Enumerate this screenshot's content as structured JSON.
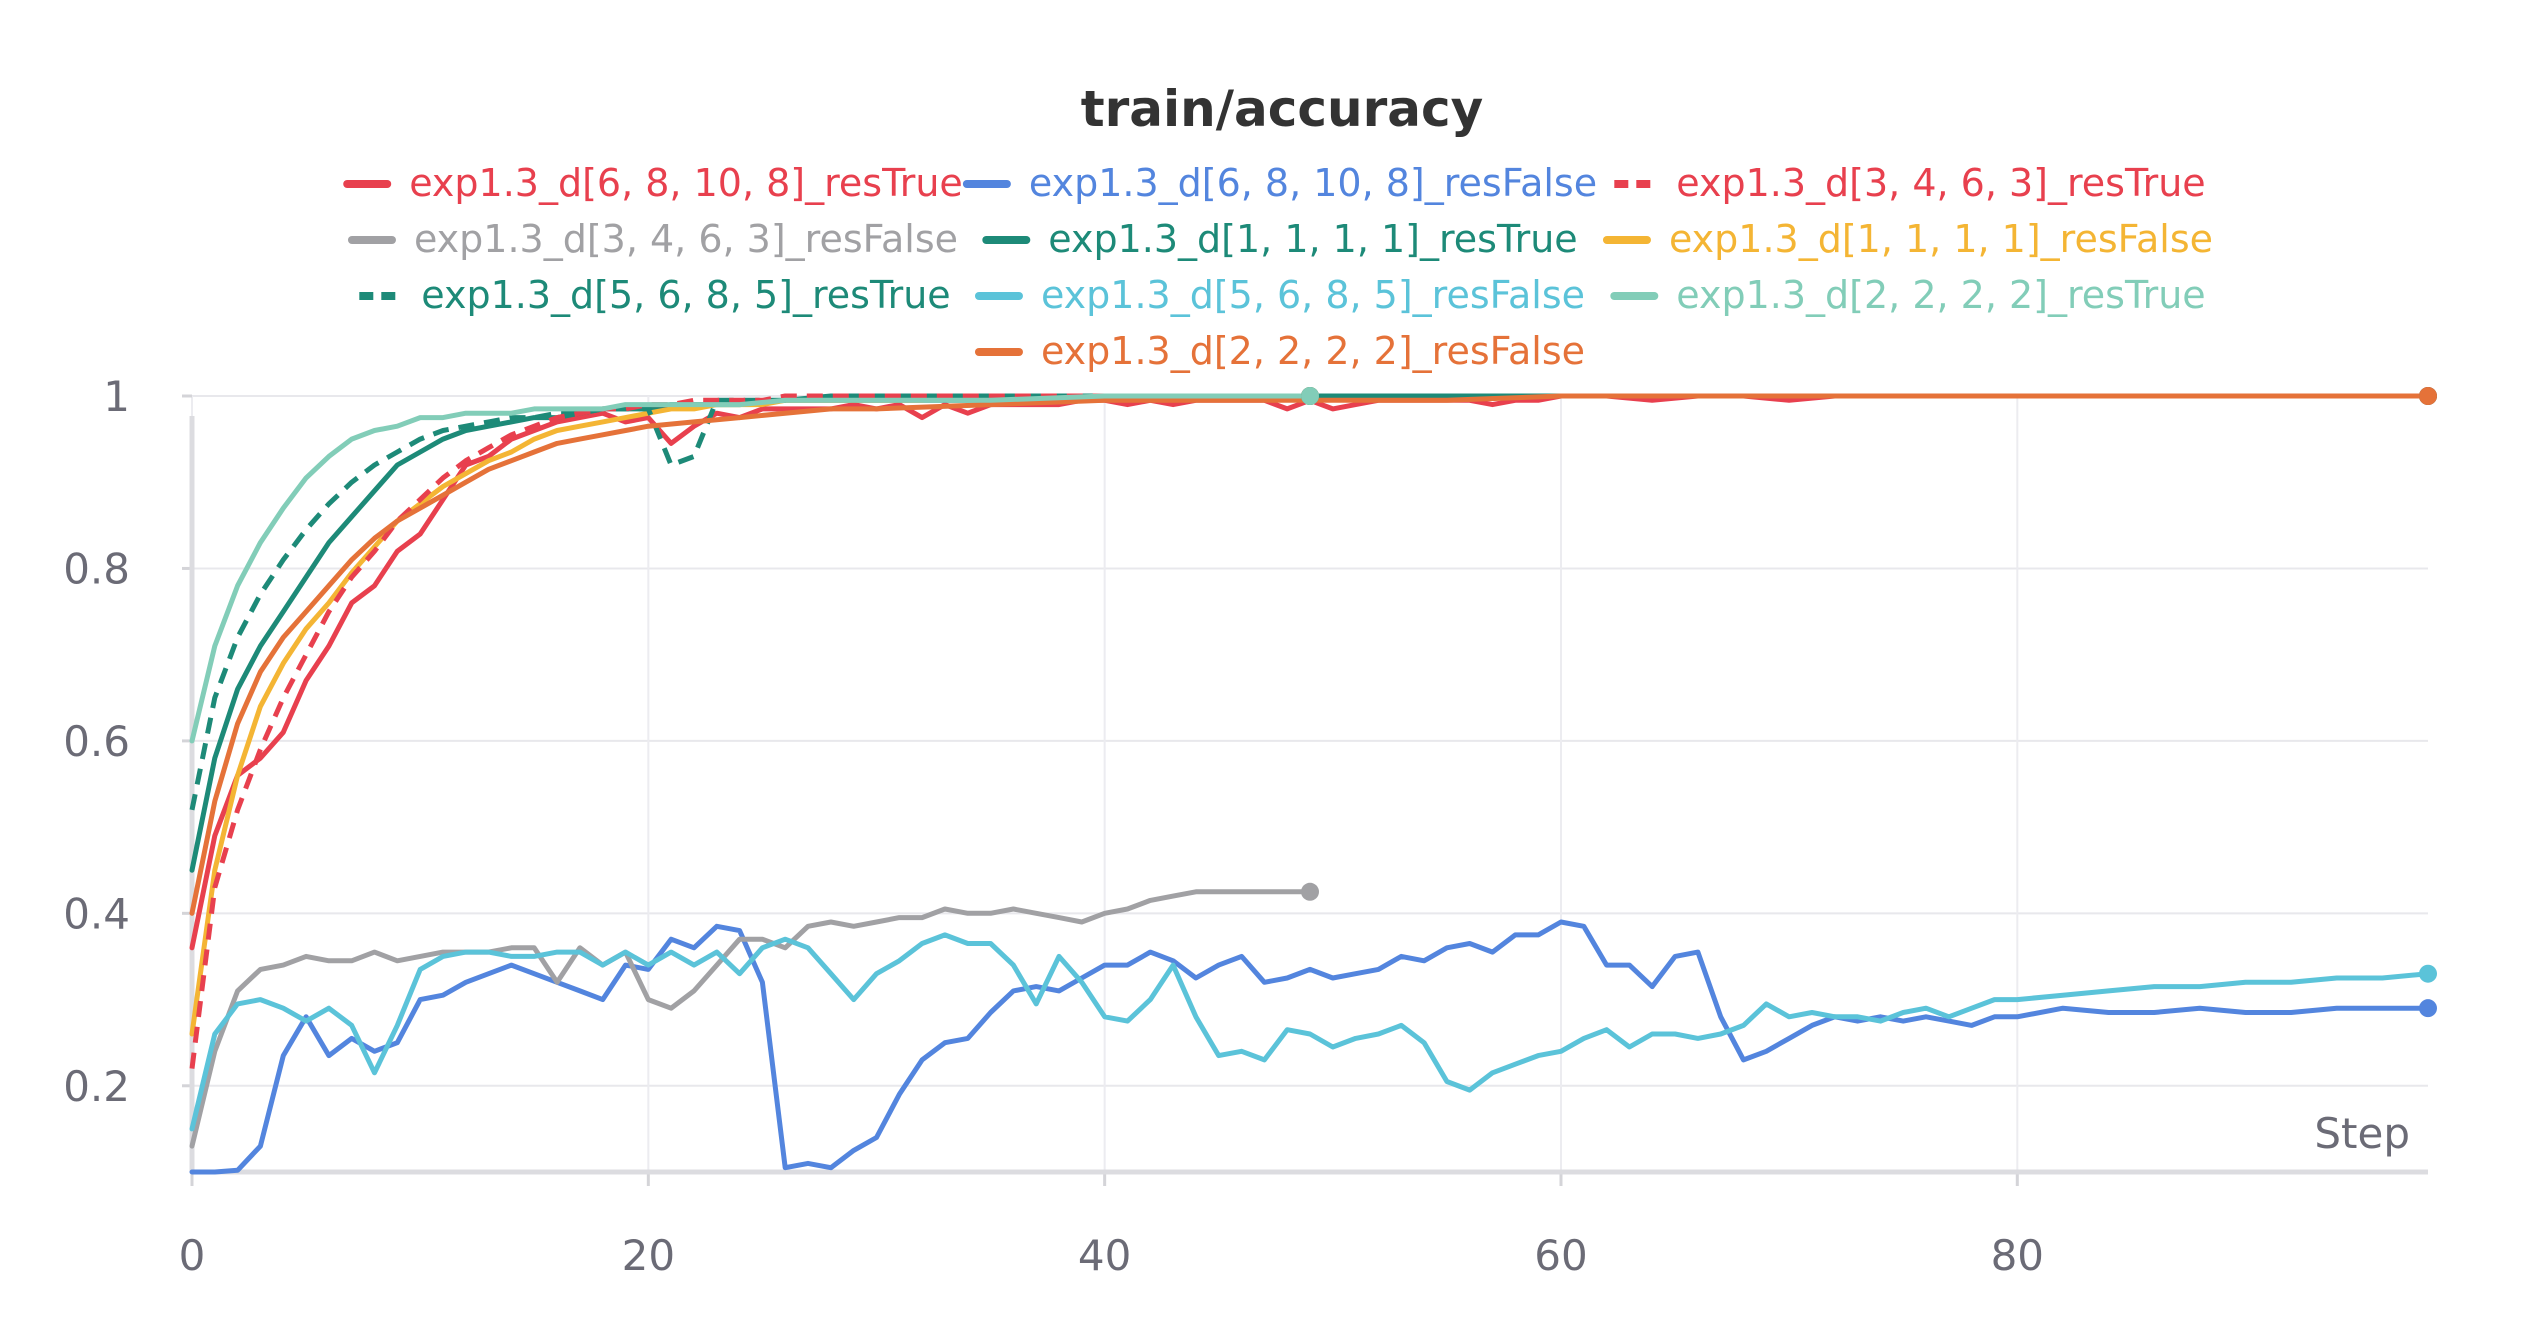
{
  "chart_data": {
    "type": "line",
    "title": "train/accuracy",
    "xlabel": "Step",
    "ylabel": "",
    "xlim": [
      0,
      98
    ],
    "ylim": [
      0.1,
      1.0
    ],
    "x_ticks": [
      "0",
      "20",
      "40",
      "60",
      "80"
    ],
    "x_tick_values": [
      0,
      20,
      40,
      60,
      80
    ],
    "y_ticks": [
      "0.2",
      "0.4",
      "0.6",
      "0.8",
      "1"
    ],
    "y_tick_values": [
      0.2,
      0.4,
      0.6,
      0.8,
      1.0
    ],
    "grid": true,
    "legend_position": "top-center",
    "series": [
      {
        "name": "exp1.3_d[6, 8, 10, 8]_resTrue",
        "color": "#e8404e",
        "dash": false,
        "x": [
          0,
          1,
          2,
          3,
          4,
          5,
          6,
          7,
          8,
          9,
          10,
          11,
          12,
          13,
          14,
          15,
          16,
          17,
          18,
          19,
          20,
          21,
          22,
          23,
          24,
          25,
          26,
          27,
          28,
          29,
          30,
          31,
          32,
          33,
          34,
          35,
          36,
          37,
          38,
          39,
          40,
          41,
          42,
          43,
          44,
          45,
          46,
          47,
          48,
          49,
          50,
          51,
          52,
          53,
          54,
          55,
          56,
          57,
          58,
          59,
          60,
          62,
          64,
          66,
          68,
          70,
          72,
          74,
          76,
          78,
          80,
          82,
          84,
          86,
          88,
          90,
          92,
          94,
          96,
          98
        ],
        "y": [
          0.36,
          0.49,
          0.56,
          0.58,
          0.61,
          0.67,
          0.71,
          0.76,
          0.78,
          0.82,
          0.84,
          0.88,
          0.92,
          0.93,
          0.95,
          0.96,
          0.97,
          0.975,
          0.98,
          0.97,
          0.975,
          0.945,
          0.965,
          0.98,
          0.975,
          0.985,
          0.985,
          0.985,
          0.985,
          0.99,
          0.985,
          0.99,
          0.975,
          0.99,
          0.98,
          0.99,
          0.99,
          0.99,
          0.99,
          0.995,
          0.995,
          0.99,
          0.995,
          0.99,
          0.995,
          0.995,
          0.995,
          0.995,
          0.985,
          0.995,
          0.985,
          0.99,
          0.995,
          0.995,
          0.995,
          0.995,
          0.995,
          0.99,
          0.995,
          0.995,
          1.0,
          1.0,
          0.995,
          1.0,
          1.0,
          0.995,
          1.0,
          1.0,
          1.0,
          1.0,
          1.0,
          1.0,
          1.0,
          1.0,
          1.0,
          1.0,
          1.0,
          1.0,
          1.0,
          1.0
        ]
      },
      {
        "name": "exp1.3_d[6, 8, 10, 8]_resFalse",
        "color": "#5385de",
        "dash": false,
        "x": [
          0,
          1,
          2,
          3,
          4,
          5,
          6,
          7,
          8,
          9,
          10,
          11,
          12,
          13,
          14,
          15,
          16,
          17,
          18,
          19,
          20,
          21,
          22,
          23,
          24,
          25,
          26,
          27,
          28,
          29,
          30,
          31,
          32,
          33,
          34,
          35,
          36,
          37,
          38,
          39,
          40,
          41,
          42,
          43,
          44,
          45,
          46,
          47,
          48,
          49,
          50,
          51,
          52,
          53,
          54,
          55,
          56,
          57,
          58,
          59,
          60,
          61,
          62,
          63,
          64,
          65,
          66,
          67,
          68,
          69,
          70,
          71,
          72,
          73,
          74,
          75,
          76,
          77,
          78,
          79,
          80,
          82,
          84,
          86,
          88,
          90,
          92,
          94,
          96,
          98
        ],
        "y": [
          0.1,
          0.1,
          0.102,
          0.13,
          0.235,
          0.28,
          0.235,
          0.255,
          0.24,
          0.25,
          0.3,
          0.305,
          0.32,
          0.33,
          0.34,
          0.33,
          0.32,
          0.31,
          0.3,
          0.34,
          0.335,
          0.37,
          0.36,
          0.385,
          0.38,
          0.32,
          0.105,
          0.11,
          0.105,
          0.125,
          0.14,
          0.19,
          0.23,
          0.25,
          0.255,
          0.285,
          0.31,
          0.315,
          0.31,
          0.325,
          0.34,
          0.34,
          0.355,
          0.345,
          0.325,
          0.34,
          0.35,
          0.32,
          0.325,
          0.335,
          0.325,
          0.33,
          0.335,
          0.35,
          0.345,
          0.36,
          0.365,
          0.355,
          0.375,
          0.375,
          0.39,
          0.385,
          0.34,
          0.34,
          0.315,
          0.35,
          0.355,
          0.28,
          0.23,
          0.24,
          0.255,
          0.27,
          0.28,
          0.275,
          0.28,
          0.275,
          0.28,
          0.275,
          0.27,
          0.28,
          0.28,
          0.29,
          0.285,
          0.285,
          0.29,
          0.285,
          0.285,
          0.29,
          0.29,
          0.29
        ]
      },
      {
        "name": "exp1.3_d[3, 4, 6, 3]_resTrue",
        "color": "#e8404e",
        "dash": true,
        "x": [
          0,
          1,
          2,
          3,
          4,
          5,
          6,
          7,
          8,
          9,
          10,
          11,
          12,
          13,
          14,
          15,
          16,
          17,
          18,
          19,
          20,
          21,
          22,
          23,
          24,
          25,
          26,
          28,
          30,
          32,
          34,
          36,
          38,
          40,
          42,
          44,
          46,
          48,
          49
        ],
        "y": [
          0.22,
          0.43,
          0.52,
          0.59,
          0.65,
          0.7,
          0.75,
          0.79,
          0.82,
          0.855,
          0.88,
          0.905,
          0.925,
          0.94,
          0.955,
          0.965,
          0.975,
          0.98,
          0.985,
          0.985,
          0.99,
          0.99,
          0.995,
          0.995,
          0.995,
          0.995,
          1.0,
          1.0,
          1.0,
          1.0,
          1.0,
          1.0,
          1.0,
          1.0,
          1.0,
          1.0,
          1.0,
          1.0,
          1.0
        ]
      },
      {
        "name": "exp1.3_d[3, 4, 6, 3]_resFalse",
        "color": "#a1a1a4",
        "dash": false,
        "x": [
          0,
          1,
          2,
          3,
          4,
          5,
          6,
          7,
          8,
          9,
          10,
          11,
          12,
          13,
          14,
          15,
          16,
          17,
          18,
          19,
          20,
          21,
          22,
          23,
          24,
          25,
          26,
          27,
          28,
          29,
          30,
          31,
          32,
          33,
          34,
          35,
          36,
          37,
          38,
          39,
          40,
          41,
          42,
          43,
          44,
          45,
          46,
          47,
          48,
          49
        ],
        "y": [
          0.13,
          0.24,
          0.31,
          0.335,
          0.34,
          0.35,
          0.345,
          0.345,
          0.355,
          0.345,
          0.35,
          0.355,
          0.355,
          0.355,
          0.36,
          0.36,
          0.32,
          0.36,
          0.34,
          0.355,
          0.3,
          0.29,
          0.31,
          0.34,
          0.37,
          0.37,
          0.36,
          0.385,
          0.39,
          0.385,
          0.39,
          0.395,
          0.395,
          0.405,
          0.4,
          0.4,
          0.405,
          0.4,
          0.395,
          0.39,
          0.4,
          0.405,
          0.415,
          0.42,
          0.425,
          0.425,
          0.425,
          0.425,
          0.425,
          0.425
        ]
      },
      {
        "name": "exp1.3_d[1, 1, 1, 1]_resTrue",
        "color": "#1d8a78",
        "dash": false,
        "x": [
          0,
          1,
          2,
          3,
          4,
          5,
          6,
          7,
          8,
          9,
          10,
          11,
          12,
          13,
          14,
          15,
          16,
          17,
          18,
          19,
          20,
          21,
          22,
          24,
          26,
          28,
          30,
          35,
          40,
          45,
          50,
          55,
          60,
          65,
          70,
          75,
          80,
          85,
          90,
          95,
          98
        ],
        "y": [
          0.45,
          0.58,
          0.66,
          0.71,
          0.75,
          0.79,
          0.83,
          0.86,
          0.89,
          0.92,
          0.935,
          0.95,
          0.96,
          0.965,
          0.97,
          0.975,
          0.975,
          0.98,
          0.985,
          0.985,
          0.985,
          0.99,
          0.99,
          0.99,
          0.995,
          0.995,
          0.995,
          0.995,
          1.0,
          1.0,
          1.0,
          1.0,
          1.0,
          1.0,
          1.0,
          1.0,
          1.0,
          1.0,
          1.0,
          1.0,
          1.0
        ]
      },
      {
        "name": "exp1.3_d[1, 1, 1, 1]_resFalse",
        "color": "#f4b534",
        "dash": false,
        "x": [
          0,
          1,
          2,
          3,
          4,
          5,
          6,
          7,
          8,
          9,
          10,
          11,
          12,
          13,
          14,
          15,
          16,
          17,
          18,
          19,
          20,
          21,
          22,
          23,
          24,
          25,
          26,
          28,
          30,
          32,
          34,
          36,
          38,
          40,
          42,
          44,
          46,
          48,
          49
        ],
        "y": [
          0.26,
          0.45,
          0.56,
          0.64,
          0.69,
          0.73,
          0.76,
          0.795,
          0.825,
          0.855,
          0.875,
          0.895,
          0.91,
          0.925,
          0.935,
          0.95,
          0.96,
          0.965,
          0.97,
          0.975,
          0.98,
          0.985,
          0.985,
          0.99,
          0.99,
          0.99,
          0.995,
          0.995,
          0.995,
          0.995,
          1.0,
          1.0,
          1.0,
          1.0,
          1.0,
          1.0,
          1.0,
          1.0,
          1.0
        ]
      },
      {
        "name": "exp1.3_d[5, 6, 8, 5]_resTrue",
        "color": "#1d8a78",
        "dash": true,
        "x": [
          0,
          1,
          2,
          3,
          4,
          5,
          6,
          7,
          8,
          9,
          10,
          11,
          12,
          13,
          14,
          15,
          16,
          17,
          18,
          19,
          20,
          21,
          22,
          23,
          24,
          25,
          26,
          28,
          30,
          32,
          34,
          36,
          38,
          40,
          42,
          44,
          46,
          48,
          49
        ],
        "y": [
          0.52,
          0.65,
          0.72,
          0.77,
          0.81,
          0.845,
          0.875,
          0.9,
          0.92,
          0.935,
          0.95,
          0.96,
          0.965,
          0.97,
          0.975,
          0.975,
          0.98,
          0.98,
          0.985,
          0.985,
          0.985,
          0.92,
          0.93,
          0.995,
          0.995,
          0.995,
          0.995,
          1.0,
          1.0,
          1.0,
          1.0,
          1.0,
          1.0,
          1.0,
          1.0,
          1.0,
          1.0,
          1.0,
          1.0
        ]
      },
      {
        "name": "exp1.3_d[5, 6, 8, 5]_resFalse",
        "color": "#5bc3d9",
        "dash": false,
        "x": [
          0,
          1,
          2,
          3,
          4,
          5,
          6,
          7,
          8,
          9,
          10,
          11,
          12,
          13,
          14,
          15,
          16,
          17,
          18,
          19,
          20,
          21,
          22,
          23,
          24,
          25,
          26,
          27,
          28,
          29,
          30,
          31,
          32,
          33,
          34,
          35,
          36,
          37,
          38,
          39,
          40,
          41,
          42,
          43,
          44,
          45,
          46,
          47,
          48,
          49,
          50,
          51,
          52,
          53,
          54,
          55,
          56,
          57,
          58,
          59,
          60,
          61,
          62,
          63,
          64,
          65,
          66,
          67,
          68,
          69,
          70,
          71,
          72,
          73,
          74,
          75,
          76,
          77,
          78,
          79,
          80,
          82,
          84,
          86,
          88,
          90,
          92,
          94,
          96,
          98
        ],
        "y": [
          0.15,
          0.26,
          0.295,
          0.3,
          0.29,
          0.275,
          0.29,
          0.27,
          0.215,
          0.27,
          0.335,
          0.35,
          0.355,
          0.355,
          0.35,
          0.35,
          0.355,
          0.355,
          0.34,
          0.355,
          0.34,
          0.355,
          0.34,
          0.355,
          0.33,
          0.36,
          0.37,
          0.36,
          0.33,
          0.3,
          0.33,
          0.345,
          0.365,
          0.375,
          0.365,
          0.365,
          0.34,
          0.295,
          0.35,
          0.32,
          0.28,
          0.275,
          0.3,
          0.34,
          0.28,
          0.235,
          0.24,
          0.23,
          0.265,
          0.26,
          0.245,
          0.255,
          0.26,
          0.27,
          0.25,
          0.205,
          0.195,
          0.215,
          0.225,
          0.235,
          0.24,
          0.255,
          0.265,
          0.245,
          0.26,
          0.26,
          0.255,
          0.26,
          0.27,
          0.295,
          0.28,
          0.285,
          0.28,
          0.28,
          0.275,
          0.285,
          0.29,
          0.28,
          0.29,
          0.3,
          0.3,
          0.305,
          0.31,
          0.315,
          0.315,
          0.32,
          0.32,
          0.325,
          0.325,
          0.33
        ]
      },
      {
        "name": "exp1.3_d[2, 2, 2, 2]_resTrue",
        "color": "#82cdb8",
        "dash": false,
        "x": [
          0,
          1,
          2,
          3,
          4,
          5,
          6,
          7,
          8,
          9,
          10,
          11,
          12,
          13,
          14,
          15,
          16,
          17,
          18,
          19,
          20,
          22,
          24,
          26,
          28,
          30,
          35,
          40,
          45,
          49
        ],
        "y": [
          0.6,
          0.71,
          0.78,
          0.83,
          0.87,
          0.905,
          0.93,
          0.95,
          0.96,
          0.965,
          0.975,
          0.975,
          0.98,
          0.98,
          0.98,
          0.985,
          0.985,
          0.985,
          0.985,
          0.99,
          0.99,
          0.99,
          0.99,
          0.995,
          0.995,
          0.995,
          0.995,
          1.0,
          1.0,
          1.0
        ]
      },
      {
        "name": "exp1.3_d[2, 2, 2, 2]_resFalse",
        "color": "#e57239",
        "dash": false,
        "x": [
          0,
          1,
          2,
          3,
          4,
          5,
          6,
          7,
          8,
          9,
          10,
          11,
          12,
          13,
          14,
          15,
          16,
          17,
          18,
          19,
          20,
          22,
          24,
          26,
          28,
          30,
          35,
          40,
          45,
          50,
          55,
          60,
          65,
          70,
          75,
          80,
          85,
          90,
          95,
          98
        ],
        "y": [
          0.4,
          0.53,
          0.62,
          0.68,
          0.72,
          0.75,
          0.78,
          0.81,
          0.835,
          0.855,
          0.87,
          0.885,
          0.9,
          0.915,
          0.925,
          0.935,
          0.945,
          0.95,
          0.955,
          0.96,
          0.965,
          0.97,
          0.975,
          0.98,
          0.985,
          0.985,
          0.99,
          0.995,
          0.995,
          0.995,
          0.995,
          1.0,
          1.0,
          1.0,
          1.0,
          1.0,
          1.0,
          1.0,
          1.0,
          1.0
        ]
      }
    ]
  }
}
